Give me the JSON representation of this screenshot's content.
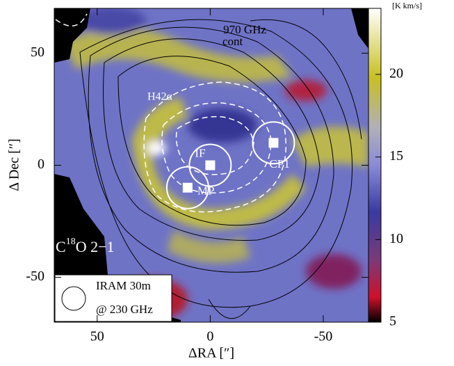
{
  "chart_data": {
    "type": "map",
    "title": {
      "prefix": "C",
      "superscript": "18",
      "suffix": "O 2−1"
    },
    "x_label": "ΔRA [″]",
    "y_label": "Δ Dec [″]",
    "xlim": [
      69,
      -70
    ],
    "ylim": [
      -70,
      70
    ],
    "xticks": [
      50,
      0,
      -50
    ],
    "yticks": [
      50,
      0,
      -50
    ],
    "colorbar": {
      "label": "[K km/s]",
      "lim": [
        5,
        24
      ],
      "ticks": [
        5,
        10,
        15,
        20
      ]
    },
    "points": [
      {
        "name": "IF",
        "x": 0,
        "y": 0
      },
      {
        "name": "MP",
        "x": 10,
        "y": -10
      },
      {
        "name": "CP1",
        "x": -28,
        "y": 10
      }
    ],
    "annotations": [
      "970 GHz",
      "cont",
      "H42α"
    ],
    "beam_legend": [
      "IRAM 30m",
      "@ 230 GHz"
    ]
  }
}
